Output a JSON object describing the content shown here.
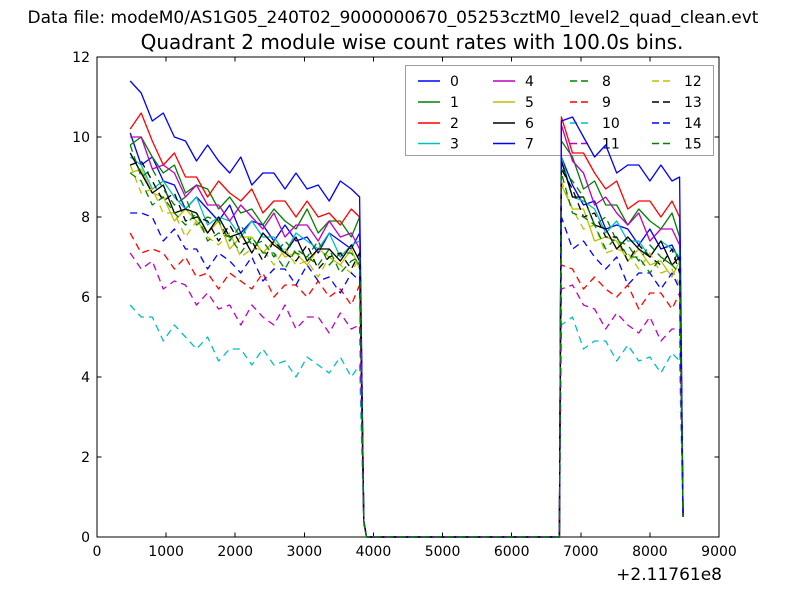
{
  "header": {
    "data_file_label": "Data file: modeM0/AS1G05_240T02_9000000670_05253cztM0_level2_quad_clean.evt"
  },
  "chart_data": {
    "type": "line",
    "title": "Quadrant 2 module wise count rates with 100.0s bins.",
    "xlabel": "",
    "ylabel": "",
    "x_offset_label": "+2.11761e8",
    "xlim": [
      0,
      9000
    ],
    "ylim": [
      0,
      12
    ],
    "x_ticks": [
      0,
      1000,
      2000,
      3000,
      4000,
      5000,
      6000,
      7000,
      8000,
      9000
    ],
    "y_ticks": [
      0,
      2,
      4,
      6,
      8,
      10,
      12
    ],
    "grid": false,
    "legend": {
      "position": "upper center inside axes",
      "ncol": 4,
      "order": "column-major",
      "border_color": "#9e9e9e",
      "background": "#ffffff"
    },
    "palette_note": "matplotlib classic b,g,r,c,m,y,k; modules 0-7 solid, 8-15 dashed",
    "x": [
      480,
      640,
      800,
      960,
      1120,
      1280,
      1440,
      1600,
      1760,
      1920,
      2080,
      2240,
      2400,
      2560,
      2720,
      2880,
      3040,
      3200,
      3360,
      3520,
      3680,
      3800,
      3860,
      3900,
      6640,
      6690,
      6720,
      6880,
      7040,
      7200,
      7360,
      7520,
      7680,
      7840,
      8000,
      8160,
      8320,
      8430,
      8480
    ],
    "series": [
      {
        "name": "0",
        "color": "#0000ff",
        "dashed": false,
        "y": [
          10.1,
          9.3,
          9.5,
          8.9,
          8.8,
          8.2,
          8.5,
          8.2,
          7.9,
          8.3,
          7.6,
          7.9,
          7.8,
          7.4,
          7.8,
          7.4,
          7.5,
          7.1,
          7.6,
          7.4,
          7.2,
          7.6,
          0.4,
          0,
          0,
          0,
          9.5,
          8.8,
          8.3,
          8.4,
          7.7,
          7.8,
          7.7,
          7.3,
          7.7,
          7.2,
          7.3,
          6.9,
          0.5
        ]
      },
      {
        "name": "1",
        "color": "#008000",
        "dashed": false,
        "y": [
          9.8,
          10.0,
          9.5,
          9.1,
          9.3,
          8.6,
          8.8,
          8.7,
          8.2,
          8.5,
          8.1,
          8.2,
          7.8,
          8.2,
          7.9,
          7.7,
          8.2,
          7.6,
          7.9,
          7.9,
          7.5,
          8.0,
          0.4,
          0,
          0,
          0,
          9.9,
          9.5,
          8.7,
          8.9,
          8.3,
          8.3,
          7.8,
          8.2,
          7.9,
          7.7,
          8.1,
          7.5,
          0.5
        ]
      },
      {
        "name": "2",
        "color": "#ff0000",
        "dashed": false,
        "y": [
          10.2,
          10.6,
          9.9,
          9.3,
          9.6,
          9.0,
          9.0,
          8.5,
          8.9,
          8.6,
          8.4,
          8.7,
          8.1,
          8.4,
          8.4,
          8.0,
          8.4,
          8.0,
          8.1,
          7.8,
          8.2,
          8.0,
          0.4,
          0,
          0,
          0,
          10.5,
          9.6,
          9.6,
          9.1,
          8.7,
          8.9,
          8.2,
          8.4,
          8.4,
          8.0,
          8.4,
          8.0,
          0.5
        ]
      },
      {
        "name": "3",
        "color": "#00bfbf",
        "dashed": false,
        "y": [
          9.5,
          9.3,
          8.7,
          8.9,
          8.5,
          8.2,
          8.5,
          7.8,
          8.0,
          7.9,
          7.5,
          7.9,
          7.5,
          7.5,
          7.1,
          7.6,
          7.4,
          7.2,
          7.6,
          7.0,
          7.3,
          7.4,
          0.4,
          0,
          0,
          0,
          9.5,
          8.5,
          8.4,
          8.2,
          7.6,
          7.9,
          7.4,
          7.4,
          7.0,
          7.4,
          7.2,
          7.0,
          0.5
        ]
      },
      {
        "name": "4",
        "color": "#bf00bf",
        "dashed": false,
        "y": [
          10.0,
          10.0,
          9.2,
          9.3,
          9.1,
          8.5,
          8.8,
          8.3,
          8.3,
          7.9,
          8.3,
          8.0,
          7.7,
          8.1,
          7.5,
          7.8,
          7.8,
          7.4,
          7.9,
          7.5,
          7.6,
          7.2,
          0.4,
          0,
          0,
          0,
          10.3,
          9.4,
          9.1,
          8.3,
          8.5,
          8.1,
          7.8,
          8.1,
          7.4,
          7.7,
          7.7,
          7.3,
          0.5
        ]
      },
      {
        "name": "5",
        "color": "#bfbf00",
        "dashed": false,
        "y": [
          9.1,
          9.2,
          8.6,
          8.5,
          7.9,
          8.2,
          7.9,
          7.6,
          7.9,
          7.2,
          7.5,
          7.5,
          7.1,
          7.4,
          7.0,
          7.1,
          6.8,
          7.2,
          7.0,
          6.8,
          7.2,
          6.7,
          0.4,
          0,
          0,
          0,
          8.8,
          8.2,
          8.2,
          7.4,
          7.5,
          7.4,
          6.9,
          7.2,
          6.8,
          6.9,
          6.5,
          6.9,
          0.5
        ]
      },
      {
        "name": "6",
        "color": "#000000",
        "dashed": false,
        "y": [
          9.6,
          9.1,
          8.6,
          8.8,
          8.1,
          8.2,
          8.1,
          7.6,
          8.0,
          7.5,
          7.6,
          7.1,
          7.6,
          7.3,
          7.1,
          7.5,
          6.9,
          7.2,
          7.2,
          6.9,
          7.3,
          6.9,
          0.4,
          0,
          0,
          0,
          9.4,
          8.5,
          8.5,
          7.8,
          7.7,
          7.2,
          7.5,
          7.2,
          7.0,
          7.4,
          6.8,
          7.0,
          0.5
        ]
      },
      {
        "name": "7",
        "color": "#0000ff",
        "dashed": false,
        "y": [
          11.4,
          11.1,
          10.4,
          10.6,
          10.0,
          9.9,
          9.4,
          9.8,
          9.4,
          9.1,
          9.5,
          8.8,
          9.1,
          9.1,
          8.7,
          9.1,
          8.7,
          8.8,
          8.4,
          8.9,
          8.7,
          8.5,
          0.4,
          0,
          0,
          0,
          10.4,
          10.5,
          10.0,
          9.5,
          9.8,
          9.1,
          9.3,
          9.3,
          8.9,
          9.3,
          8.9,
          9.0,
          0.5
        ]
      },
      {
        "name": "8",
        "color": "#008000",
        "dashed": true,
        "y": [
          9.8,
          9.0,
          9.2,
          8.7,
          8.3,
          8.5,
          7.8,
          8.0,
          7.9,
          7.4,
          7.8,
          7.3,
          7.4,
          7.0,
          7.4,
          7.1,
          7.0,
          7.4,
          6.8,
          7.1,
          7.1,
          6.8,
          0.4,
          0,
          0,
          0,
          9.2,
          8.9,
          8.5,
          7.8,
          8.0,
          7.4,
          7.3,
          6.9,
          7.3,
          7.0,
          6.8,
          7.2,
          0.5
        ]
      },
      {
        "name": "9",
        "color": "#ff0000",
        "dashed": true,
        "y": [
          7.6,
          7.1,
          7.2,
          7.1,
          6.7,
          7.0,
          6.5,
          6.6,
          6.2,
          6.6,
          6.4,
          6.2,
          6.6,
          6.0,
          6.3,
          6.3,
          6.0,
          6.4,
          6.0,
          6.2,
          5.8,
          6.3,
          0.4,
          0,
          0,
          0,
          6.8,
          6.7,
          6.2,
          6.5,
          6.2,
          6.0,
          6.3,
          5.7,
          6.1,
          6.1,
          5.7,
          6.1,
          0.5
        ]
      },
      {
        "name": "10",
        "color": "#00bfbf",
        "dashed": true,
        "y": [
          5.8,
          5.5,
          5.5,
          4.9,
          5.3,
          5.0,
          4.7,
          5.0,
          4.4,
          4.7,
          4.7,
          4.3,
          4.7,
          4.3,
          4.4,
          4.0,
          4.5,
          4.3,
          4.1,
          4.5,
          4.0,
          4.3,
          0.3,
          0,
          0,
          0,
          5.3,
          5.5,
          4.7,
          4.9,
          4.9,
          4.4,
          4.8,
          4.4,
          4.5,
          4.1,
          4.6,
          4.4,
          0.5
        ]
      },
      {
        "name": "11",
        "color": "#bf00bf",
        "dashed": true,
        "y": [
          7.1,
          6.7,
          6.9,
          6.2,
          6.4,
          6.3,
          5.8,
          6.1,
          5.7,
          5.8,
          5.3,
          5.8,
          5.5,
          5.3,
          5.8,
          5.2,
          5.5,
          5.5,
          5.1,
          5.6,
          5.2,
          5.3,
          0.4,
          0,
          0,
          0,
          6.2,
          6.3,
          5.8,
          5.7,
          5.2,
          5.6,
          5.3,
          5.1,
          5.5,
          4.9,
          5.2,
          5.2,
          0.5
        ]
      },
      {
        "name": "12",
        "color": "#bfbf00",
        "dashed": true,
        "y": [
          9.3,
          8.6,
          8.7,
          8.1,
          8.1,
          7.5,
          7.9,
          7.5,
          7.3,
          7.6,
          7.0,
          7.2,
          7.2,
          6.8,
          7.2,
          6.8,
          6.9,
          6.5,
          7.0,
          6.8,
          6.6,
          7.0,
          0.4,
          0,
          0,
          0,
          8.9,
          8.2,
          7.7,
          7.8,
          7.1,
          7.2,
          7.1,
          6.7,
          7.1,
          6.6,
          6.7,
          6.3,
          0.5
        ]
      },
      {
        "name": "13",
        "color": "#000000",
        "dashed": true,
        "y": [
          9.3,
          9.4,
          8.9,
          8.4,
          8.6,
          7.9,
          8.0,
          7.9,
          7.4,
          7.8,
          7.3,
          7.4,
          6.9,
          7.4,
          7.1,
          6.9,
          7.3,
          6.7,
          7.0,
          7.1,
          6.7,
          7.1,
          0.4,
          0,
          0,
          0,
          9.2,
          8.7,
          8.0,
          8.1,
          7.5,
          7.5,
          6.9,
          7.3,
          7.0,
          6.8,
          7.2,
          6.6,
          0.5
        ]
      },
      {
        "name": "14",
        "color": "#0000ff",
        "dashed": true,
        "y": [
          8.1,
          8.1,
          8.0,
          7.4,
          7.7,
          7.2,
          7.2,
          6.7,
          7.1,
          6.9,
          6.6,
          7.0,
          6.4,
          6.7,
          6.7,
          6.3,
          6.8,
          6.4,
          6.5,
          6.1,
          6.6,
          6.4,
          0.4,
          0,
          0,
          0,
          8.0,
          7.2,
          7.4,
          7.0,
          6.7,
          7.0,
          6.3,
          6.6,
          6.6,
          6.2,
          6.6,
          6.2,
          0.5
        ]
      },
      {
        "name": "15",
        "color": "#008000",
        "dashed": true,
        "y": [
          9.1,
          8.9,
          8.3,
          8.5,
          8.1,
          7.8,
          8.1,
          7.4,
          7.6,
          7.5,
          7.1,
          7.5,
          7.1,
          7.1,
          6.7,
          7.2,
          7.0,
          6.8,
          7.2,
          6.6,
          6.9,
          7.0,
          0.4,
          0,
          0,
          0,
          9.1,
          8.1,
          8.0,
          7.8,
          7.2,
          7.5,
          7.0,
          7.0,
          6.6,
          7.0,
          6.8,
          6.6,
          0.5
        ]
      }
    ]
  }
}
